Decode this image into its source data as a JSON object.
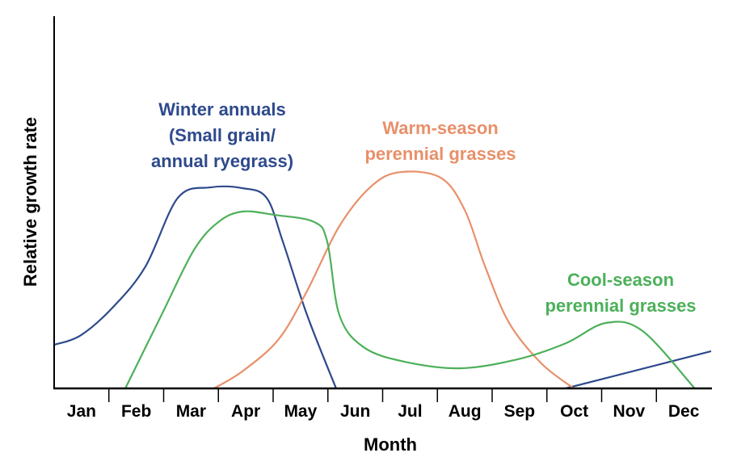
{
  "chart_data": {
    "type": "line",
    "title": "",
    "xlabel": "Month",
    "ylabel": "Relative growth rate",
    "categories": [
      "Jan",
      "Feb",
      "Mar",
      "Apr",
      "May",
      "Jun",
      "Jul",
      "Aug",
      "Sep",
      "Oct",
      "Nov",
      "Dec"
    ],
    "xlim": [
      0,
      12
    ],
    "ylim": [
      0,
      100
    ],
    "grid": false,
    "y_ticks_shown": false,
    "series": [
      {
        "name": "Winter annuals (Small grain/ annual ryegrass)",
        "label_lines": [
          "Winter annuals",
          "(Small grain/",
          "annual ryegrass)"
        ],
        "color": "#2e4a8c",
        "segments": [
          [
            [
              0,
              11.7
            ],
            [
              0.49,
              14.3
            ],
            [
              1.08,
              21.9
            ],
            [
              1.67,
              32.8
            ],
            [
              2.26,
              51.2
            ],
            [
              2.85,
              54.0
            ],
            [
              3.44,
              53.8
            ],
            [
              3.88,
              51.2
            ],
            [
              4.18,
              39.3
            ],
            [
              4.62,
              19.7
            ],
            [
              5.15,
              0
            ]
          ],
          [
            [
              9.34,
              0
            ],
            [
              12,
              10
            ]
          ]
        ]
      },
      {
        "name": "Warm-season perennial grasses",
        "label_lines": [
          "Warm-season",
          "perennial grasses"
        ],
        "color": "#e8906a",
        "segments": [
          [
            [
              2.92,
              0
            ],
            [
              3.44,
              4.6
            ],
            [
              4.1,
              13.2
            ],
            [
              4.62,
              26.2
            ],
            [
              5.21,
              43.6
            ],
            [
              5.8,
              54.4
            ],
            [
              6.32,
              58.1
            ],
            [
              7.06,
              56.6
            ],
            [
              7.5,
              47.9
            ],
            [
              7.87,
              32.8
            ],
            [
              8.31,
              17.6
            ],
            [
              8.9,
              6.7
            ],
            [
              9.49,
              0
            ]
          ]
        ]
      },
      {
        "name": "Cool-season perennial grasses",
        "label_lines": [
          "Cool-season",
          "perennial grasses"
        ],
        "color": "#4cb05a",
        "segments": [
          [
            [
              1.3,
              0
            ],
            [
              1.96,
              19.7
            ],
            [
              2.55,
              37.1
            ],
            [
              3.0,
              44.7
            ],
            [
              3.44,
              47.5
            ],
            [
              4.03,
              46.6
            ],
            [
              4.75,
              44.7
            ],
            [
              4.99,
              39.3
            ],
            [
              5.21,
              19.7
            ],
            [
              5.65,
              11.1
            ],
            [
              6.39,
              7.2
            ],
            [
              7.42,
              5.4
            ],
            [
              8.46,
              7.8
            ],
            [
              9.34,
              12.1
            ],
            [
              10.08,
              17.6
            ],
            [
              10.75,
              15.4
            ],
            [
              11.7,
              0
            ]
          ]
        ]
      }
    ]
  }
}
